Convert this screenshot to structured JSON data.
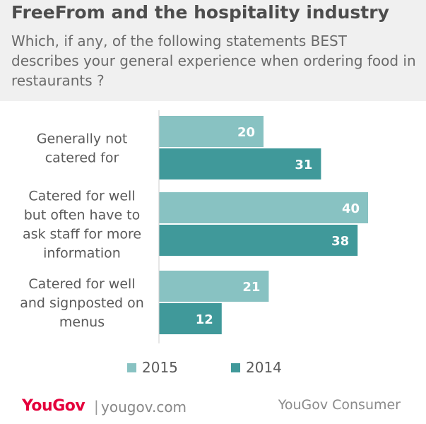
{
  "header": {
    "title": "FreeFrom and the hospitality industry",
    "subtitle": "Which, if any, of the following statements BEST describes your general experience when ordering food in restaurants ?"
  },
  "colors": {
    "series_2015": "#88c2c2",
    "series_2014": "#40999a",
    "axis": "#cfcfcf",
    "header_bg": "#f0f0f0",
    "brand": "#e4003b"
  },
  "chart_data": {
    "type": "bar",
    "orientation": "horizontal",
    "categories": [
      [
        "Generally not",
        "catered for"
      ],
      [
        "Catered for well",
        "but often have to",
        "ask staff for more",
        "information"
      ],
      [
        "Catered for well",
        "and signposted on",
        "menus"
      ]
    ],
    "series": [
      {
        "name": "2015",
        "values": [
          20,
          40,
          21
        ]
      },
      {
        "name": "2014",
        "values": [
          31,
          38,
          12
        ]
      }
    ],
    "value_labels": true,
    "legend_position": "bottom"
  },
  "legend": {
    "items": [
      "2015",
      "2014"
    ]
  },
  "footer": {
    "logo": "YouGov",
    "separator": "|",
    "site": "yougov.com",
    "source": "YouGov Consumer"
  }
}
